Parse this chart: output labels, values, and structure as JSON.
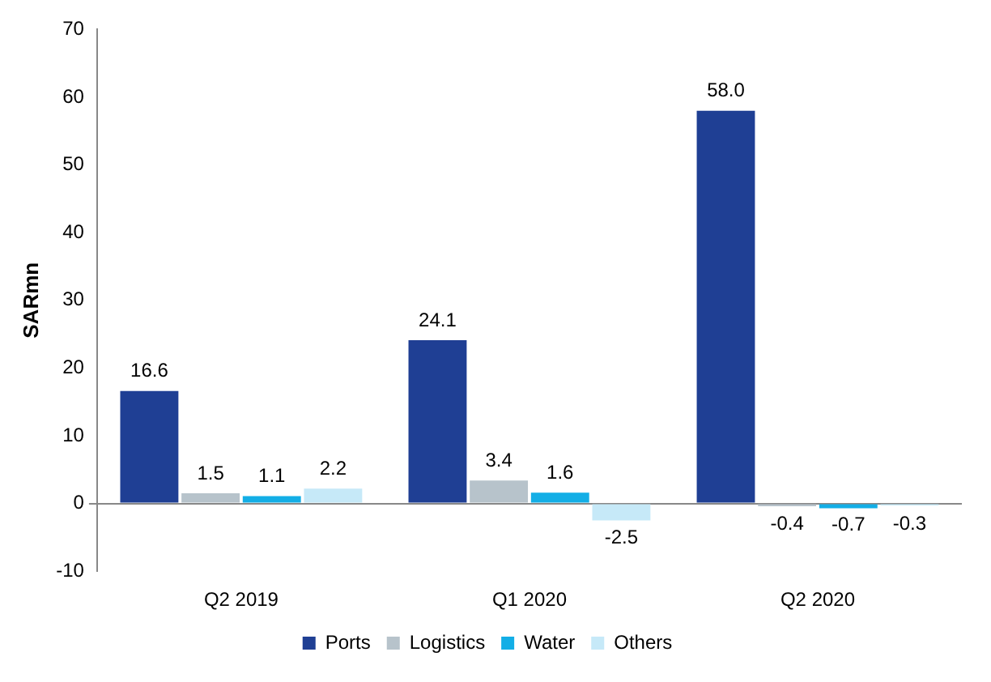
{
  "chart_data": {
    "type": "bar",
    "ylabel": "SARmn",
    "categories": [
      "Q2 2019",
      "Q1 2020",
      "Q2 2020"
    ],
    "series": [
      {
        "name": "Ports",
        "color": "#1f3f94",
        "values": [
          16.6,
          24.1,
          58.0
        ],
        "value_labels": [
          "16.6",
          "24.1",
          "58.0"
        ]
      },
      {
        "name": "Logistics",
        "color": "#b7c3cb",
        "values": [
          1.5,
          3.4,
          -0.4
        ],
        "value_labels": [
          "1.5",
          "3.4",
          "-0.4"
        ]
      },
      {
        "name": "Water",
        "color": "#13aee6",
        "values": [
          1.1,
          1.6,
          -0.7
        ],
        "value_labels": [
          "1.1",
          "1.6",
          "-0.7"
        ]
      },
      {
        "name": "Others",
        "color": "#c6e9f8",
        "values": [
          2.2,
          -2.5,
          -0.3
        ],
        "value_labels": [
          "2.2",
          "-2.5",
          "-0.3"
        ]
      }
    ],
    "ylim": [
      -10,
      70
    ],
    "yticks": [
      -10,
      0,
      10,
      20,
      30,
      40,
      50,
      60,
      70
    ],
    "legend": "bottom"
  }
}
